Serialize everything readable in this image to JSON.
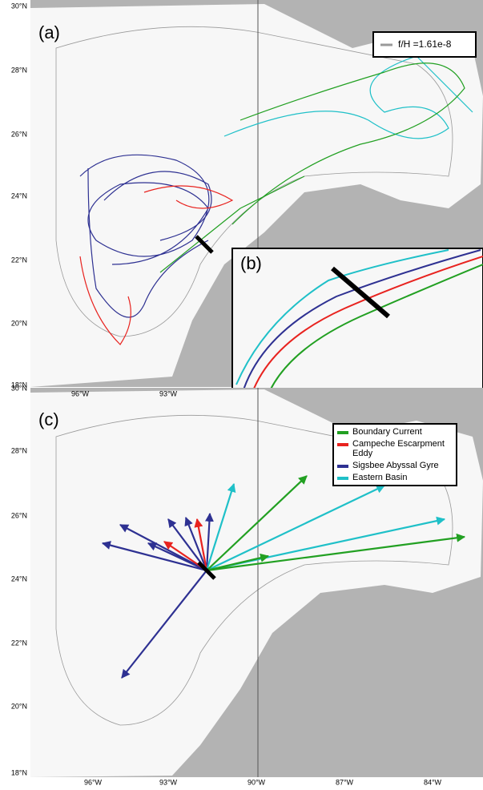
{
  "panel_a": {
    "label": "(a)",
    "legend": "f/H =1.61e-8",
    "inset_label": "(b)"
  },
  "panel_c": {
    "label": "(c)",
    "legend": [
      "Boundary Current",
      "Campeche Escarpment Eddy",
      "Sigsbee Abyssal Gyre",
      "Eastern Basin"
    ]
  },
  "lat_labels_a": [
    "30°N",
    "28°N",
    "26°N",
    "24°N",
    "22°N",
    "20°N",
    "18°N"
  ],
  "lon_labels_a": [
    "96°W",
    "93°W"
  ],
  "lat_labels_c": [
    "30°N",
    "28°N",
    "26°N",
    "24°N",
    "22°N",
    "20°N",
    "18°N"
  ],
  "lon_labels_c": [
    "96°W",
    "93°W",
    "90°W",
    "87°W",
    "84°W"
  ]
}
